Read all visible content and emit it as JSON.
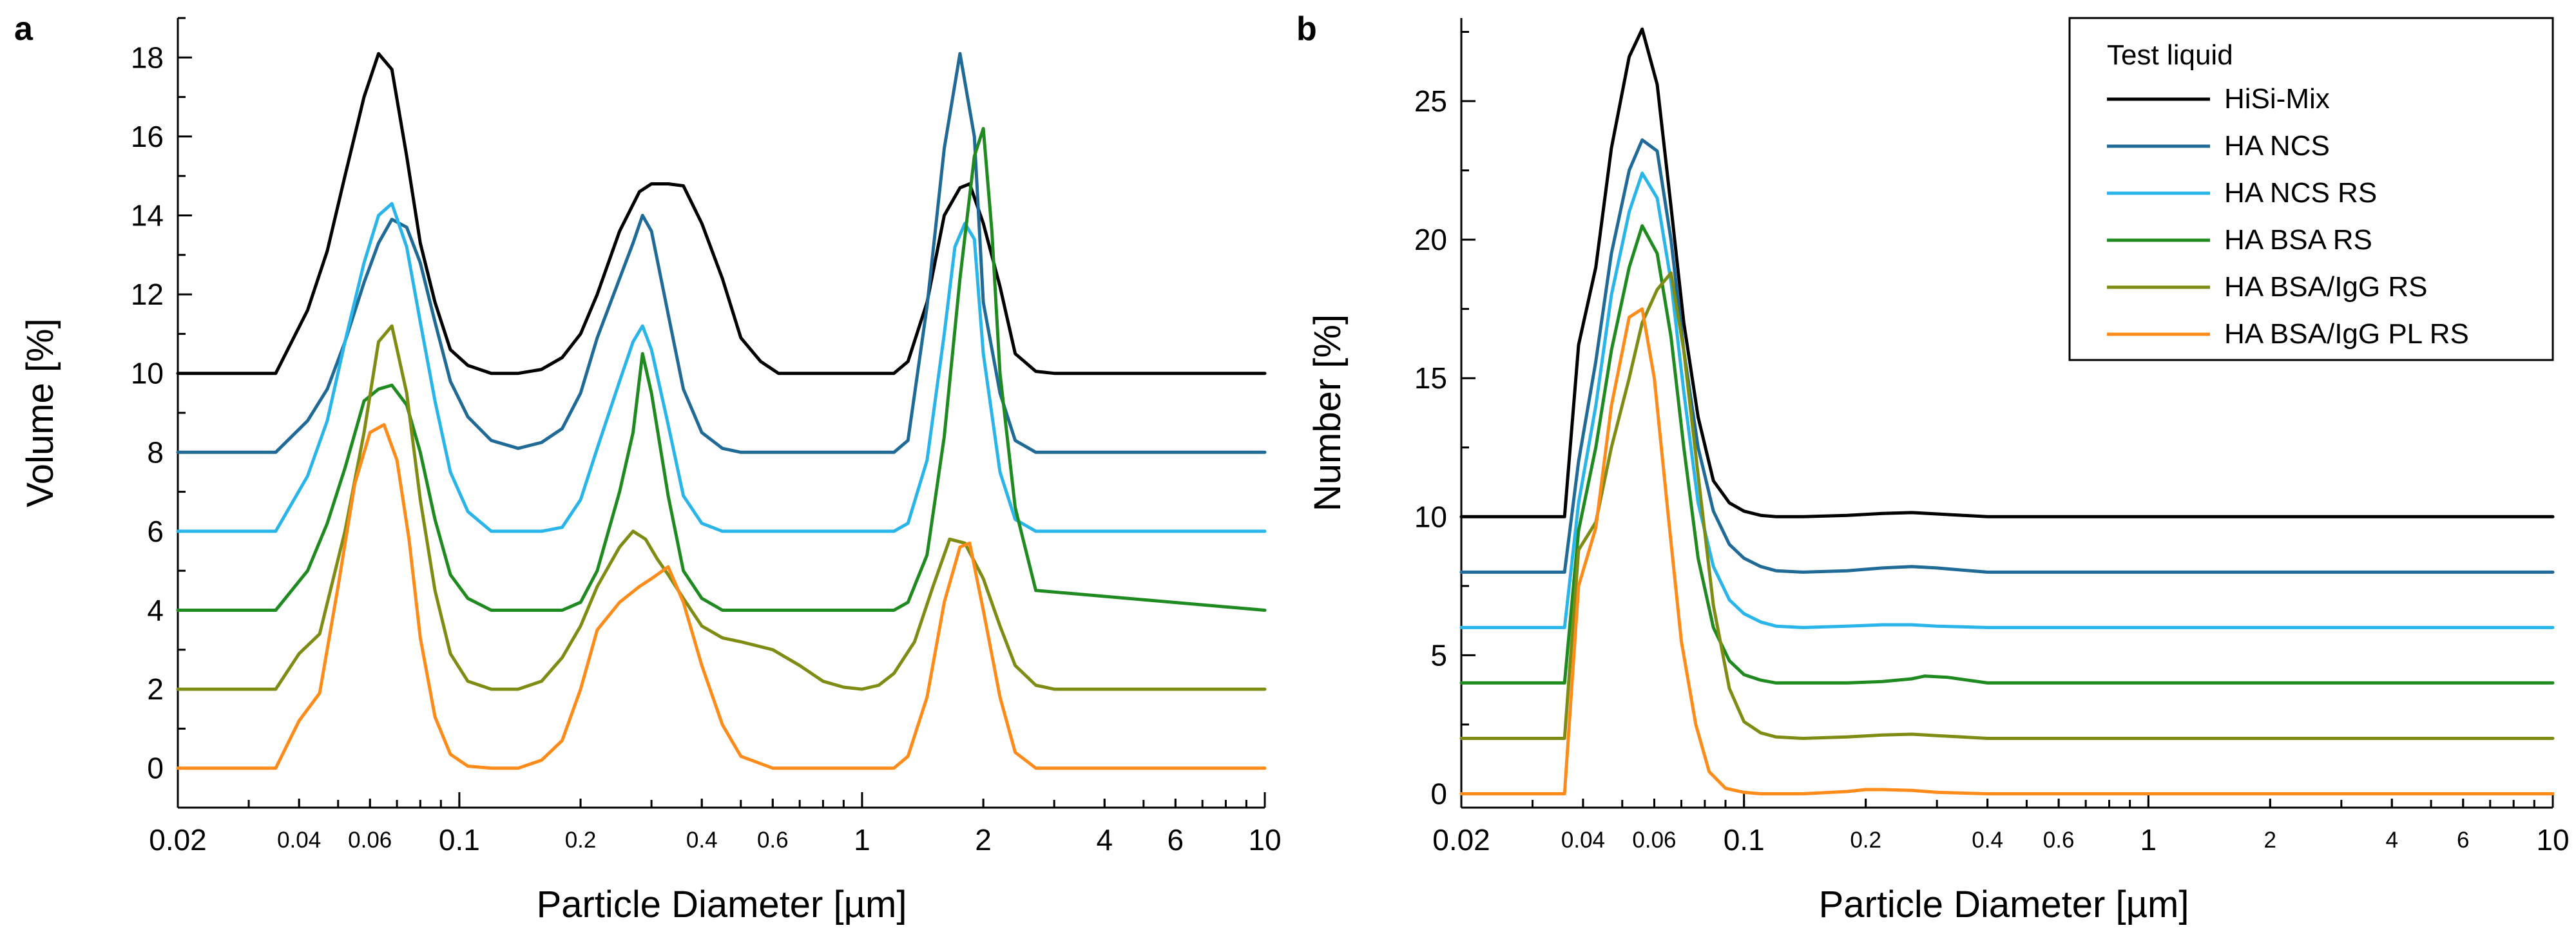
{
  "legend": {
    "title": "Test liquid",
    "entries": [
      {
        "name": "HiSi-Mix",
        "color": "#000000"
      },
      {
        "name": "HA NCS",
        "color": "#1f6a96"
      },
      {
        "name": "HA NCS RS",
        "color": "#29b5ea"
      },
      {
        "name": "HA BSA RS",
        "color": "#1f8a1f"
      },
      {
        "name": "HA BSA/IgG RS",
        "color": "#7f8c14"
      },
      {
        "name": "HA BSA/IgG PL RS",
        "color": "#ff8c1a"
      }
    ]
  },
  "chart_data": [
    {
      "panel": "a",
      "type": "line",
      "xscale": "log",
      "xlabel": "Particle Diameter [µm]",
      "ylabel": "Volume [%]",
      "xlim": [
        0.02,
        10
      ],
      "ylim": [
        -1,
        19
      ],
      "x_ticks": [
        {
          "value": 0.02,
          "label": "0.02",
          "major": true
        },
        {
          "value": 0.04,
          "label": "0.04",
          "major": false
        },
        {
          "value": 0.06,
          "label": "0.06",
          "major": false
        },
        {
          "value": 0.1,
          "label": "0.1",
          "major": true
        },
        {
          "value": 0.2,
          "label": "0.2",
          "major": false
        },
        {
          "value": 0.4,
          "label": "0.4",
          "major": false
        },
        {
          "value": 0.6,
          "label": "0.6",
          "major": false
        },
        {
          "value": 1,
          "label": "1",
          "major": true
        },
        {
          "value": 2,
          "label": "2",
          "major": true
        },
        {
          "value": 4,
          "label": "4",
          "major": true
        },
        {
          "value": 6,
          "label": "6",
          "major": true
        },
        {
          "value": 10,
          "label": "10",
          "major": true
        }
      ],
      "y_ticks": [
        0,
        2,
        4,
        6,
        8,
        10,
        12,
        14,
        16,
        18
      ],
      "series": [
        {
          "name": "HiSi-Mix",
          "color": "#000000",
          "x": [
            0.02,
            0.035,
            0.042,
            0.047,
            0.052,
            0.058,
            0.063,
            0.068,
            0.074,
            0.08,
            0.087,
            0.095,
            0.105,
            0.12,
            0.14,
            0.16,
            0.18,
            0.2,
            0.22,
            0.25,
            0.28,
            0.3,
            0.33,
            0.36,
            0.4,
            0.45,
            0.5,
            0.56,
            0.62,
            0.7,
            1.0,
            1.2,
            1.3,
            1.45,
            1.6,
            1.75,
            1.85,
            2.0,
            2.2,
            2.4,
            2.7,
            3.0,
            10
          ],
          "y": [
            10,
            10,
            11.6,
            13.1,
            15.0,
            17.0,
            18.1,
            17.7,
            15.5,
            13.3,
            11.8,
            10.6,
            10.2,
            10.0,
            10.0,
            10.1,
            10.4,
            11.0,
            12.0,
            13.6,
            14.6,
            14.8,
            14.8,
            14.75,
            13.8,
            12.4,
            10.9,
            10.3,
            10.0,
            10.0,
            10.0,
            10.0,
            10.3,
            11.8,
            14.0,
            14.7,
            14.8,
            13.8,
            12.2,
            10.5,
            10.05,
            10.0,
            10.0
          ]
        },
        {
          "name": "HA NCS",
          "color": "#1f6a96",
          "x": [
            0.02,
            0.035,
            0.042,
            0.047,
            0.052,
            0.058,
            0.063,
            0.068,
            0.074,
            0.08,
            0.087,
            0.095,
            0.105,
            0.12,
            0.14,
            0.16,
            0.18,
            0.2,
            0.22,
            0.25,
            0.27,
            0.285,
            0.3,
            0.33,
            0.36,
            0.4,
            0.45,
            0.5,
            0.6,
            1.0,
            1.2,
            1.3,
            1.45,
            1.6,
            1.75,
            1.9,
            2.0,
            2.2,
            2.4,
            2.7,
            10
          ],
          "y": [
            8,
            8,
            8.8,
            9.6,
            10.8,
            12.3,
            13.3,
            13.9,
            13.7,
            12.8,
            11.3,
            9.8,
            8.9,
            8.3,
            8.1,
            8.25,
            8.6,
            9.5,
            10.9,
            12.4,
            13.3,
            14.0,
            13.6,
            11.5,
            9.6,
            8.5,
            8.1,
            8.0,
            8.0,
            8.0,
            8.0,
            8.3,
            11.7,
            15.7,
            18.1,
            16.0,
            11.8,
            9.5,
            8.3,
            8.0,
            8.0
          ]
        },
        {
          "name": "HA NCS RS",
          "color": "#29b5ea",
          "x": [
            0.02,
            0.035,
            0.042,
            0.047,
            0.052,
            0.058,
            0.063,
            0.068,
            0.074,
            0.08,
            0.087,
            0.095,
            0.105,
            0.12,
            0.14,
            0.16,
            0.18,
            0.2,
            0.22,
            0.25,
            0.27,
            0.285,
            0.3,
            0.33,
            0.36,
            0.4,
            0.45,
            0.5,
            0.6,
            1.0,
            1.2,
            1.3,
            1.45,
            1.6,
            1.7,
            1.8,
            1.9,
            2.0,
            2.2,
            2.4,
            2.7,
            10
          ],
          "y": [
            6,
            6,
            7.4,
            8.8,
            10.8,
            12.8,
            14.0,
            14.3,
            13.2,
            11.3,
            9.3,
            7.5,
            6.5,
            6.0,
            6.0,
            6.0,
            6.1,
            6.8,
            8.1,
            9.8,
            10.8,
            11.2,
            10.6,
            8.7,
            6.9,
            6.2,
            6.0,
            6.0,
            6.0,
            6.0,
            6.0,
            6.2,
            7.8,
            11.0,
            13.2,
            13.8,
            13.4,
            10.5,
            7.5,
            6.3,
            6.0,
            6.0
          ]
        },
        {
          "name": "HA BSA RS",
          "color": "#1f8a1f",
          "x": [
            0.02,
            0.035,
            0.042,
            0.047,
            0.052,
            0.058,
            0.063,
            0.068,
            0.074,
            0.08,
            0.087,
            0.095,
            0.105,
            0.12,
            0.14,
            0.16,
            0.18,
            0.2,
            0.22,
            0.25,
            0.27,
            0.285,
            0.3,
            0.33,
            0.36,
            0.4,
            0.45,
            0.5,
            0.6,
            1.0,
            1.2,
            1.3,
            1.45,
            1.6,
            1.75,
            1.9,
            2.0,
            2.1,
            2.2,
            2.4,
            2.7,
            10
          ],
          "y": [
            4,
            4,
            5.0,
            6.2,
            7.6,
            9.3,
            9.6,
            9.7,
            9.2,
            8.0,
            6.3,
            4.9,
            4.3,
            4.0,
            4.0,
            4.0,
            4.0,
            4.2,
            5.0,
            7.0,
            8.5,
            10.5,
            9.5,
            6.9,
            5.0,
            4.3,
            4.0,
            4.0,
            4.0,
            4.0,
            4.0,
            4.2,
            5.4,
            8.4,
            12.4,
            15.5,
            16.2,
            13.6,
            10.0,
            6.6,
            4.5,
            4.0
          ]
        },
        {
          "name": "HA BSA/IgG RS",
          "color": "#7f8c14",
          "x": [
            0.02,
            0.035,
            0.04,
            0.045,
            0.052,
            0.058,
            0.063,
            0.068,
            0.074,
            0.08,
            0.087,
            0.095,
            0.105,
            0.12,
            0.14,
            0.16,
            0.18,
            0.2,
            0.22,
            0.25,
            0.27,
            0.29,
            0.31,
            0.33,
            0.36,
            0.4,
            0.45,
            0.5,
            0.6,
            0.7,
            0.8,
            0.9,
            1.0,
            1.1,
            1.2,
            1.35,
            1.5,
            1.65,
            1.8,
            2.0,
            2.2,
            2.4,
            2.7,
            3.0,
            10
          ],
          "y": [
            2,
            2,
            2.9,
            3.4,
            6.0,
            8.5,
            10.8,
            11.2,
            9.5,
            6.8,
            4.5,
            2.9,
            2.2,
            2.0,
            2.0,
            2.2,
            2.8,
            3.6,
            4.6,
            5.6,
            6.0,
            5.8,
            5.3,
            4.9,
            4.3,
            3.6,
            3.3,
            3.2,
            3.0,
            2.6,
            2.2,
            2.05,
            2.0,
            2.1,
            2.4,
            3.2,
            4.6,
            5.8,
            5.7,
            4.8,
            3.6,
            2.6,
            2.1,
            2.0,
            2.0
          ]
        },
        {
          "name": "HA BSA/IgG PL RS",
          "color": "#ff8c1a",
          "x": [
            0.02,
            0.035,
            0.04,
            0.045,
            0.05,
            0.055,
            0.06,
            0.065,
            0.07,
            0.075,
            0.08,
            0.087,
            0.095,
            0.105,
            0.12,
            0.14,
            0.16,
            0.18,
            0.2,
            0.22,
            0.25,
            0.28,
            0.3,
            0.33,
            0.36,
            0.4,
            0.45,
            0.5,
            0.6,
            1.0,
            1.2,
            1.3,
            1.45,
            1.6,
            1.75,
            1.85,
            2.0,
            2.2,
            2.4,
            2.7,
            10
          ],
          "y": [
            0,
            0,
            1.2,
            1.9,
            4.6,
            7.2,
            8.5,
            8.7,
            7.8,
            5.8,
            3.3,
            1.3,
            0.35,
            0.05,
            0.0,
            0.0,
            0.2,
            0.7,
            2.0,
            3.5,
            4.2,
            4.6,
            4.8,
            5.1,
            4.2,
            2.6,
            1.1,
            0.3,
            0.0,
            0.0,
            0.0,
            0.3,
            1.8,
            4.2,
            5.6,
            5.7,
            4.0,
            1.8,
            0.4,
            0.0,
            0.0
          ]
        }
      ]
    },
    {
      "panel": "b",
      "type": "line",
      "xscale": "log",
      "xlabel": "Particle Diameter [µm]",
      "ylabel": "Number [%]",
      "xlim": [
        0.02,
        10
      ],
      "ylim": [
        -0.5,
        28
      ],
      "x_ticks": [
        {
          "value": 0.02,
          "label": "0.02",
          "major": true
        },
        {
          "value": 0.04,
          "label": "0.04",
          "major": false
        },
        {
          "value": 0.06,
          "label": "0.06",
          "major": false
        },
        {
          "value": 0.1,
          "label": "0.1",
          "major": true
        },
        {
          "value": 0.2,
          "label": "0.2",
          "major": false
        },
        {
          "value": 0.4,
          "label": "0.4",
          "major": false
        },
        {
          "value": 0.6,
          "label": "0.6",
          "major": false
        },
        {
          "value": 1,
          "label": "1",
          "major": true
        },
        {
          "value": 2,
          "label": "2",
          "major": false
        },
        {
          "value": 4,
          "label": "4",
          "major": false
        },
        {
          "value": 6,
          "label": "6",
          "major": false
        },
        {
          "value": 10,
          "label": "10",
          "major": true
        }
      ],
      "y_ticks": [
        0,
        5,
        10,
        15,
        20,
        25
      ],
      "series": [
        {
          "name": "HiSi-Mix",
          "color": "#000000",
          "x": [
            0.02,
            0.036,
            0.039,
            0.043,
            0.047,
            0.052,
            0.056,
            0.061,
            0.066,
            0.071,
            0.077,
            0.084,
            0.092,
            0.1,
            0.11,
            0.12,
            0.14,
            0.18,
            0.22,
            0.26,
            0.3,
            0.4,
            0.6,
            10
          ],
          "y": [
            10,
            10,
            16.2,
            19.0,
            23.3,
            26.6,
            27.6,
            25.6,
            21.2,
            17.0,
            13.6,
            11.3,
            10.5,
            10.2,
            10.05,
            10.0,
            10.0,
            10.05,
            10.12,
            10.15,
            10.1,
            10.0,
            10.0,
            10.0
          ]
        },
        {
          "name": "HA NCS",
          "color": "#1f6a96",
          "x": [
            0.02,
            0.036,
            0.039,
            0.043,
            0.047,
            0.052,
            0.056,
            0.061,
            0.066,
            0.071,
            0.077,
            0.084,
            0.092,
            0.1,
            0.11,
            0.12,
            0.14,
            0.18,
            0.22,
            0.26,
            0.3,
            0.4,
            0.6,
            10
          ],
          "y": [
            8,
            8,
            12.0,
            15.6,
            19.5,
            22.5,
            23.6,
            23.2,
            20.0,
            16.0,
            12.5,
            10.2,
            9.0,
            8.5,
            8.2,
            8.05,
            8.0,
            8.05,
            8.15,
            8.2,
            8.15,
            8.0,
            8.0,
            8.0
          ]
        },
        {
          "name": "HA NCS RS",
          "color": "#29b5ea",
          "x": [
            0.02,
            0.036,
            0.039,
            0.043,
            0.047,
            0.052,
            0.056,
            0.061,
            0.066,
            0.071,
            0.077,
            0.084,
            0.092,
            0.1,
            0.11,
            0.12,
            0.14,
            0.18,
            0.22,
            0.26,
            0.3,
            0.4,
            0.6,
            10
          ],
          "y": [
            6,
            6,
            10.5,
            14.0,
            18.0,
            21.0,
            22.4,
            21.5,
            18.5,
            14.5,
            10.5,
            8.2,
            7.0,
            6.5,
            6.2,
            6.05,
            6.0,
            6.05,
            6.1,
            6.1,
            6.05,
            6.0,
            6.0,
            6.0
          ]
        },
        {
          "name": "HA BSA RS",
          "color": "#1f8a1f",
          "x": [
            0.02,
            0.036,
            0.039,
            0.043,
            0.047,
            0.052,
            0.056,
            0.061,
            0.066,
            0.071,
            0.077,
            0.084,
            0.092,
            0.1,
            0.11,
            0.12,
            0.14,
            0.18,
            0.22,
            0.26,
            0.28,
            0.32,
            0.4,
            0.6,
            10
          ],
          "y": [
            4,
            4,
            9.5,
            12.5,
            16.0,
            19.0,
            20.5,
            19.5,
            16.5,
            12.5,
            8.5,
            6.0,
            4.8,
            4.3,
            4.1,
            4.0,
            4.0,
            4.0,
            4.05,
            4.15,
            4.25,
            4.2,
            4.0,
            4.0,
            4.0
          ]
        },
        {
          "name": "HA BSA/IgG RS",
          "color": "#7f8c14",
          "x": [
            0.02,
            0.036,
            0.039,
            0.043,
            0.047,
            0.052,
            0.056,
            0.061,
            0.066,
            0.071,
            0.077,
            0.084,
            0.092,
            0.1,
            0.11,
            0.12,
            0.14,
            0.18,
            0.22,
            0.26,
            0.3,
            0.4,
            0.6,
            10
          ],
          "y": [
            2,
            2,
            8.8,
            9.8,
            12.5,
            15.0,
            17.0,
            18.2,
            18.8,
            16.0,
            11.5,
            6.8,
            3.8,
            2.6,
            2.2,
            2.05,
            2.0,
            2.05,
            2.12,
            2.15,
            2.1,
            2.0,
            2.0,
            2.0
          ]
        },
        {
          "name": "HA BSA/IgG PL RS",
          "color": "#ff8c1a",
          "x": [
            0.02,
            0.036,
            0.039,
            0.043,
            0.047,
            0.052,
            0.056,
            0.06,
            0.065,
            0.07,
            0.076,
            0.082,
            0.09,
            0.1,
            0.11,
            0.12,
            0.14,
            0.18,
            0.2,
            0.22,
            0.26,
            0.3,
            0.4,
            0.6,
            10
          ],
          "y": [
            0,
            0,
            7.5,
            9.6,
            14.0,
            17.2,
            17.5,
            15.0,
            10.0,
            5.5,
            2.5,
            0.8,
            0.2,
            0.05,
            0.0,
            0.0,
            0.0,
            0.08,
            0.15,
            0.15,
            0.12,
            0.05,
            0.0,
            0.0,
            0.0
          ]
        }
      ]
    }
  ]
}
